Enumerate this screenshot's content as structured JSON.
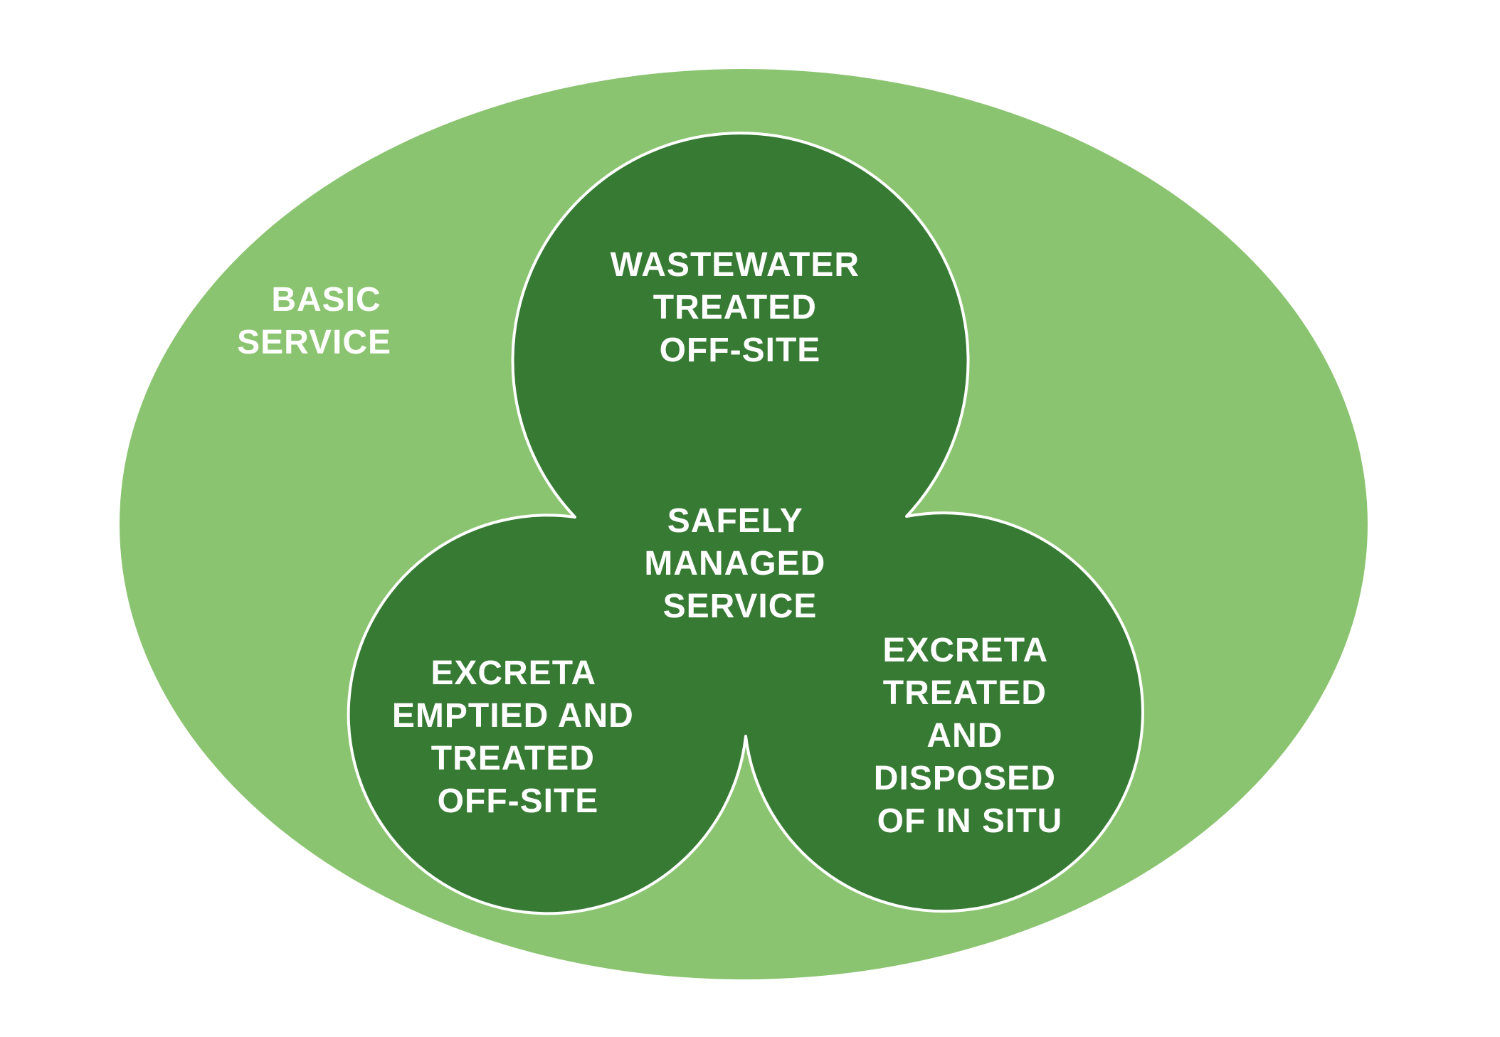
{
  "colors": {
    "outer_ellipse": "#8bc470",
    "inner_blob": "#377a34",
    "outline": "#ffffff",
    "text": "#ffffff"
  },
  "outer": {
    "lines": [
      "BASIC",
      "SERVICE"
    ]
  },
  "center": {
    "lines": [
      "SAFELY",
      "MANAGED",
      "SERVICE"
    ]
  },
  "top": {
    "lines": [
      "WASTEWATER",
      "TREATED",
      "OFF-SITE"
    ]
  },
  "bottom_left": {
    "lines": [
      "EXCRETA",
      "EMPTIED AND",
      "TREATED",
      "OFF-SITE"
    ]
  },
  "bottom_right": {
    "lines": [
      "EXCRETA",
      "TREATED",
      "AND",
      "DISPOSED",
      "OF IN SITU"
    ]
  }
}
